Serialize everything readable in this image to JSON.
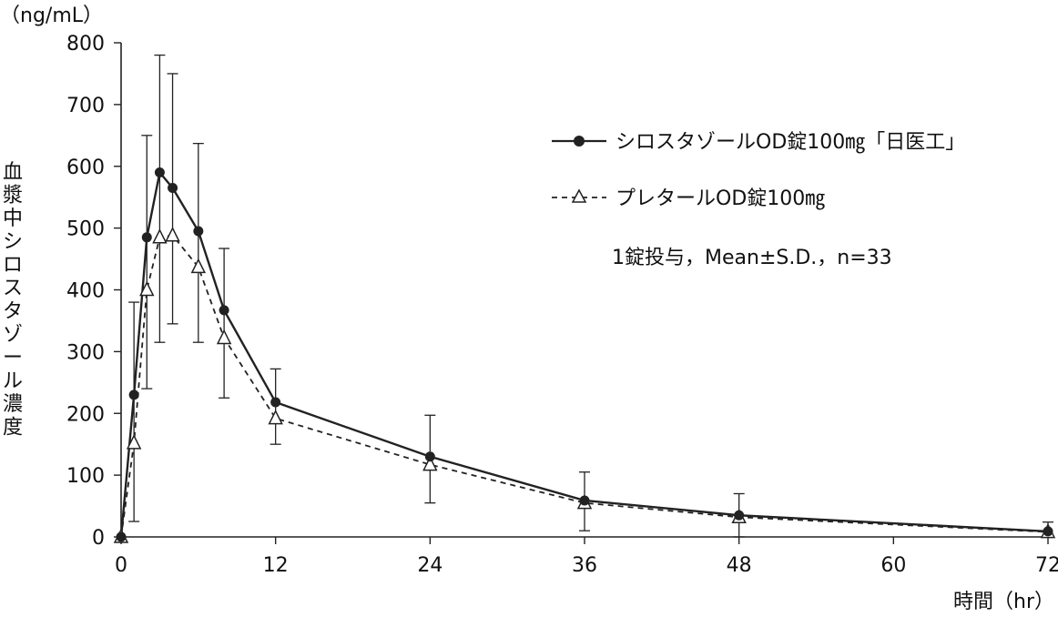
{
  "chart_data": {
    "type": "line",
    "y_unit_label": "（ng/mL）",
    "ylabel": "血漿中シロスタゾール濃度",
    "xlabel": "時間（hr）",
    "xlim": [
      0,
      72
    ],
    "ylim": [
      0,
      800
    ],
    "x_ticks": [
      0,
      12,
      24,
      36,
      48,
      60,
      72
    ],
    "y_ticks": [
      0,
      100,
      200,
      300,
      400,
      500,
      600,
      700,
      800
    ],
    "grid": false,
    "legend_position": "top-right",
    "annotation": "1錠投与，Mean±S.D.，n=33",
    "series": [
      {
        "name": "シロスタゾールOD錠100㎎「日医工」",
        "marker": "filled-circle",
        "line": "solid",
        "x": [
          0,
          1,
          2,
          3,
          4,
          6,
          8,
          12,
          24,
          36,
          48,
          72
        ],
        "y": [
          0,
          230,
          485,
          590,
          565,
          495,
          367,
          218,
          130,
          59,
          35,
          9
        ],
        "error_upper": [
          0,
          380,
          650,
          780,
          750,
          637,
          467,
          272,
          197,
          105,
          70,
          24
        ],
        "error_lower": [
          0,
          25,
          240,
          315,
          345,
          315,
          225,
          150,
          55,
          10,
          0,
          0
        ]
      },
      {
        "name": "プレタールOD錠100㎎",
        "marker": "open-triangle",
        "line": "dashed",
        "x": [
          0,
          1,
          2,
          3,
          4,
          6,
          8,
          12,
          24,
          36,
          48,
          72
        ],
        "y": [
          0,
          152,
          400,
          485,
          488,
          437,
          322,
          192,
          117,
          55,
          32,
          8
        ]
      }
    ]
  }
}
